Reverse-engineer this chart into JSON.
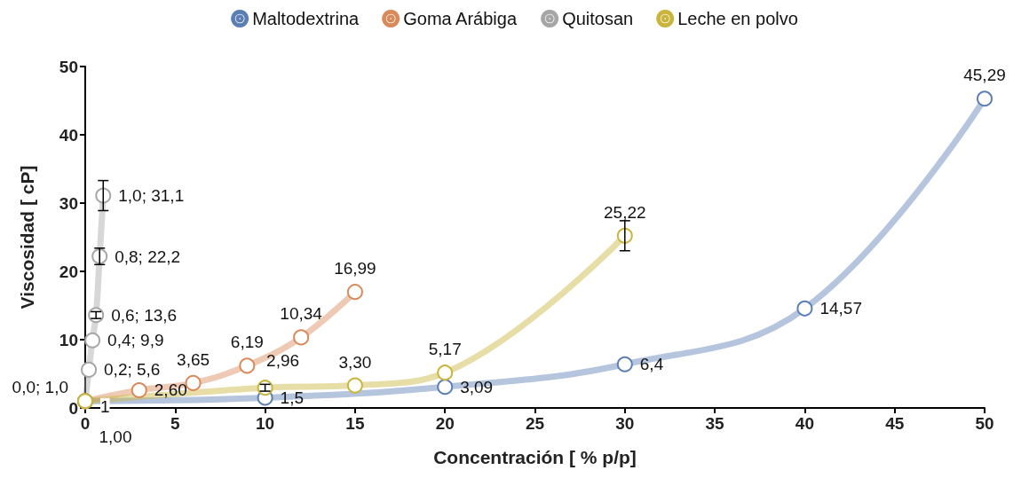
{
  "chart_data": {
    "type": "line",
    "xlabel": "Concentración [ % p/p]",
    "ylabel": "Viscosidad [ cP]",
    "xlim": [
      0,
      50
    ],
    "xticks": [
      0,
      5,
      10,
      15,
      20,
      25,
      30,
      35,
      40,
      45,
      50
    ],
    "ylim": [
      0,
      50
    ],
    "yticks": [
      0,
      10,
      20,
      30,
      40,
      50
    ],
    "grid": false,
    "legend": "top",
    "marker": "circle",
    "line_style": "solid",
    "series": [
      {
        "name": "Maltodextrina",
        "color": "#5b7fb5",
        "x": [
          0,
          10,
          20,
          30,
          40,
          50
        ],
        "values": [
          1.0,
          1.5,
          3.09,
          6.4,
          14.57,
          45.29
        ],
        "value_labels": [
          "1,00",
          "1,5",
          "3,09",
          "6,4",
          "14,57",
          "45,29"
        ]
      },
      {
        "name": "Goma Arábiga",
        "color": "#d98a5a",
        "x": [
          0,
          3,
          6,
          9,
          12,
          15
        ],
        "values": [
          1,
          2.6,
          3.65,
          6.19,
          10.34,
          16.99
        ],
        "value_labels": [
          "1",
          "2,60",
          "3,65",
          "6,19",
          "10,34",
          "16,99"
        ]
      },
      {
        "name": "Quitosan",
        "color": "#a6a6a6",
        "x": [
          0,
          0.2,
          0.4,
          0.6,
          0.8,
          1.0
        ],
        "values": [
          1.0,
          5.6,
          9.9,
          13.6,
          22.2,
          31.1
        ],
        "value_labels": [
          "0,0; 1,0",
          "0,2; 5,6",
          "0,4; 9,9",
          "0,6; 13,6",
          "0,8; 22,2",
          "1,0; 31,1"
        ],
        "errors": [
          null,
          null,
          null,
          0.5,
          1.2,
          2.2
        ]
      },
      {
        "name": "Leche en polvo",
        "color": "#c9b53c",
        "x": [
          0,
          10,
          15,
          20,
          30
        ],
        "values": [
          1,
          2.96,
          3.3,
          5.17,
          25.22
        ],
        "value_labels": [
          null,
          "2,96",
          "3,30",
          "5,17",
          "25,22"
        ],
        "errors": [
          null,
          0.5,
          null,
          null,
          2.2
        ]
      }
    ]
  }
}
